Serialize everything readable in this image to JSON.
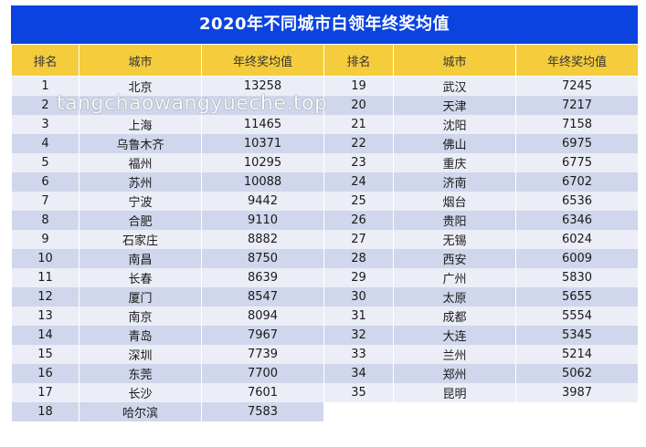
{
  "title": "2020年不同城市白领年终奖均值",
  "headers": [
    "排名",
    "城市",
    "年终奖均值",
    "排名",
    "城市",
    "年终奖均值"
  ],
  "rows": [
    {
      "l": {
        "rank": "1",
        "city": "北京",
        "value": "13258"
      },
      "r": {
        "rank": "19",
        "city": "武汉",
        "value": "7245"
      }
    },
    {
      "l": {
        "rank": "2",
        "city": "",
        "value": ""
      },
      "r": {
        "rank": "20",
        "city": "天津",
        "value": "7217"
      }
    },
    {
      "l": {
        "rank": "3",
        "city": "上海",
        "value": "11465"
      },
      "r": {
        "rank": "21",
        "city": "沈阳",
        "value": "7158"
      }
    },
    {
      "l": {
        "rank": "4",
        "city": "乌鲁木齐",
        "value": "10371"
      },
      "r": {
        "rank": "22",
        "city": "佛山",
        "value": "6975"
      }
    },
    {
      "l": {
        "rank": "5",
        "city": "福州",
        "value": "10295"
      },
      "r": {
        "rank": "23",
        "city": "重庆",
        "value": "6775"
      }
    },
    {
      "l": {
        "rank": "6",
        "city": "苏州",
        "value": "10088"
      },
      "r": {
        "rank": "24",
        "city": "济南",
        "value": "6702"
      }
    },
    {
      "l": {
        "rank": "7",
        "city": "宁波",
        "value": "9442"
      },
      "r": {
        "rank": "25",
        "city": "烟台",
        "value": "6536"
      }
    },
    {
      "l": {
        "rank": "8",
        "city": "合肥",
        "value": "9110"
      },
      "r": {
        "rank": "26",
        "city": "贵阳",
        "value": "6346"
      }
    },
    {
      "l": {
        "rank": "9",
        "city": "石家庄",
        "value": "8882"
      },
      "r": {
        "rank": "27",
        "city": "无锡",
        "value": "6024"
      }
    },
    {
      "l": {
        "rank": "10",
        "city": "南昌",
        "value": "8750"
      },
      "r": {
        "rank": "28",
        "city": "西安",
        "value": "6009"
      }
    },
    {
      "l": {
        "rank": "11",
        "city": "长春",
        "value": "8639"
      },
      "r": {
        "rank": "29",
        "city": "广州",
        "value": "5830"
      }
    },
    {
      "l": {
        "rank": "12",
        "city": "厦门",
        "value": "8547"
      },
      "r": {
        "rank": "30",
        "city": "太原",
        "value": "5655"
      }
    },
    {
      "l": {
        "rank": "13",
        "city": "南京",
        "value": "8094"
      },
      "r": {
        "rank": "31",
        "city": "成都",
        "value": "5554"
      }
    },
    {
      "l": {
        "rank": "14",
        "city": "青岛",
        "value": "7967"
      },
      "r": {
        "rank": "32",
        "city": "大连",
        "value": "5345"
      }
    },
    {
      "l": {
        "rank": "15",
        "city": "深圳",
        "value": "7739"
      },
      "r": {
        "rank": "33",
        "city": "兰州",
        "value": "5214"
      }
    },
    {
      "l": {
        "rank": "16",
        "city": "东莞",
        "value": "7700"
      },
      "r": {
        "rank": "34",
        "city": "郑州",
        "value": "5062"
      }
    },
    {
      "l": {
        "rank": "17",
        "city": "长沙",
        "value": "7601"
      },
      "r": {
        "rank": "35",
        "city": "昆明",
        "value": "3987"
      }
    },
    {
      "l": {
        "rank": "18",
        "city": "哈尔滨",
        "value": "7583"
      },
      "r": null
    }
  ],
  "watermark": "tangchaowangyueche.top",
  "colors": {
    "title_bg": "#0b43e0",
    "header_bg": "#f4cc3c",
    "row_light": "#ebeef6",
    "row_dark": "#d0d6eb"
  }
}
